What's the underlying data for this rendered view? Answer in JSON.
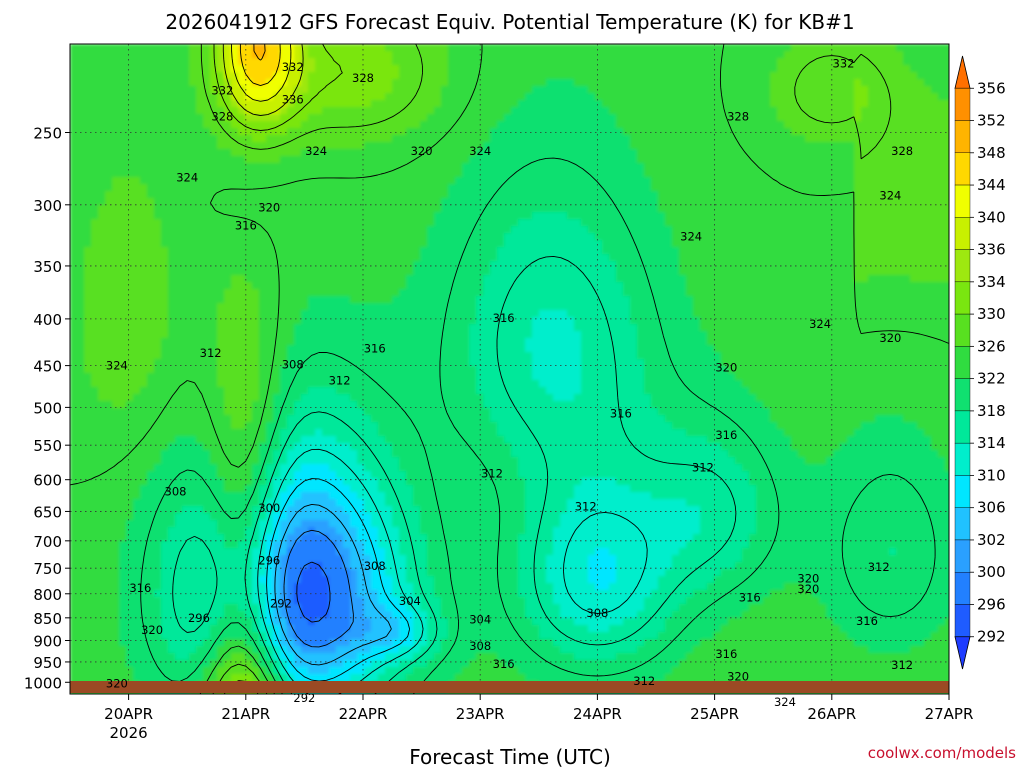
{
  "chart_data": {
    "type": "heatmap",
    "title": "2026041912 GFS Forecast Equiv. Potential Temperature (K) for KB#1",
    "xlabel": "Forecast Time (UTC)",
    "ylabel": "",
    "x_ticks": [
      {
        "label": "20APR",
        "sublabel": "2026",
        "day": 20
      },
      {
        "label": "21APR",
        "day": 21
      },
      {
        "label": "22APR",
        "day": 22
      },
      {
        "label": "23APR",
        "day": 23
      },
      {
        "label": "24APR",
        "day": 24
      },
      {
        "label": "25APR",
        "day": 25
      },
      {
        "label": "26APR",
        "day": 26
      },
      {
        "label": "27APR",
        "day": 27
      }
    ],
    "xlim": [
      19.5,
      27.0
    ],
    "y_ticks": [
      250,
      300,
      350,
      400,
      450,
      500,
      550,
      600,
      650,
      700,
      750,
      800,
      850,
      900,
      950,
      1000
    ],
    "ylim": [
      1030,
      200
    ],
    "y_axis_scale": "log pressure (hPa)",
    "grid": "dotted",
    "colorbar": {
      "units": "K",
      "ticks": [
        292,
        296,
        300,
        302,
        306,
        310,
        314,
        318,
        322,
        326,
        330,
        334,
        336,
        340,
        344,
        348,
        352,
        356
      ],
      "colors": [
        "#1e3cff",
        "#1f5cff",
        "#2280ff",
        "#2aa0ff",
        "#20c2ff",
        "#00e6ff",
        "#00eecc",
        "#00e89a",
        "#10e070",
        "#30dc40",
        "#58e020",
        "#7ae610",
        "#9ee810",
        "#c8f000",
        "#f0ff00",
        "#ffd800",
        "#ffb400",
        "#ff9000",
        "#ff7000"
      ]
    },
    "contour_labels": [
      {
        "value": "332",
        "day": 21.4,
        "p": 212
      },
      {
        "value": "328",
        "day": 22.0,
        "p": 218
      },
      {
        "value": "332",
        "day": 20.8,
        "p": 225
      },
      {
        "value": "336",
        "day": 21.4,
        "p": 230
      },
      {
        "value": "328",
        "day": 20.8,
        "p": 240
      },
      {
        "value": "324",
        "day": 21.6,
        "p": 262
      },
      {
        "value": "320",
        "day": 22.5,
        "p": 262
      },
      {
        "value": "324",
        "day": 23.0,
        "p": 262
      },
      {
        "value": "328",
        "day": 25.2,
        "p": 240
      },
      {
        "value": "332",
        "day": 26.1,
        "p": 210
      },
      {
        "value": "328",
        "day": 26.6,
        "p": 262
      },
      {
        "value": "324",
        "day": 20.5,
        "p": 280
      },
      {
        "value": "320",
        "day": 21.2,
        "p": 302
      },
      {
        "value": "316",
        "day": 21.0,
        "p": 316
      },
      {
        "value": "324",
        "day": 26.5,
        "p": 293
      },
      {
        "value": "324",
        "day": 24.8,
        "p": 325
      },
      {
        "value": "316",
        "day": 23.2,
        "p": 399
      },
      {
        "value": "324",
        "day": 25.9,
        "p": 405
      },
      {
        "value": "320",
        "day": 26.5,
        "p": 420
      },
      {
        "value": "316",
        "day": 22.1,
        "p": 431
      },
      {
        "value": "312",
        "day": 20.7,
        "p": 436
      },
      {
        "value": "308",
        "day": 21.4,
        "p": 449
      },
      {
        "value": "312",
        "day": 21.8,
        "p": 467
      },
      {
        "value": "320",
        "day": 25.1,
        "p": 452
      },
      {
        "value": "324",
        "day": 19.9,
        "p": 450
      },
      {
        "value": "316",
        "day": 24.2,
        "p": 508
      },
      {
        "value": "316",
        "day": 25.1,
        "p": 536
      },
      {
        "value": "312",
        "day": 23.1,
        "p": 591
      },
      {
        "value": "312",
        "day": 24.9,
        "p": 582
      },
      {
        "value": "308",
        "day": 20.4,
        "p": 618
      },
      {
        "value": "300",
        "day": 21.2,
        "p": 644
      },
      {
        "value": "312",
        "day": 23.9,
        "p": 642
      },
      {
        "value": "296",
        "day": 21.2,
        "p": 736
      },
      {
        "value": "308",
        "day": 22.1,
        "p": 746
      },
      {
        "value": "312",
        "day": 26.4,
        "p": 748
      },
      {
        "value": "320",
        "day": 25.8,
        "p": 770
      },
      {
        "value": "316",
        "day": 20.1,
        "p": 788
      },
      {
        "value": "304",
        "day": 22.4,
        "p": 815
      },
      {
        "value": "320",
        "day": 25.8,
        "p": 790
      },
      {
        "value": "316",
        "day": 25.3,
        "p": 808
      },
      {
        "value": "292",
        "day": 21.3,
        "p": 820
      },
      {
        "value": "308",
        "day": 24.0,
        "p": 840
      },
      {
        "value": "296",
        "day": 20.6,
        "p": 850
      },
      {
        "value": "304",
        "day": 23.0,
        "p": 854
      },
      {
        "value": "316",
        "day": 26.3,
        "p": 857
      },
      {
        "value": "320",
        "day": 20.2,
        "p": 877
      },
      {
        "value": "308",
        "day": 23.0,
        "p": 913
      },
      {
        "value": "316",
        "day": 25.1,
        "p": 931
      },
      {
        "value": "316",
        "day": 23.2,
        "p": 955
      },
      {
        "value": "312",
        "day": 26.6,
        "p": 957
      },
      {
        "value": "312",
        "day": 24.4,
        "p": 997
      },
      {
        "value": "320",
        "day": 25.2,
        "p": 985
      },
      {
        "value": "320",
        "day": 19.9,
        "p": 1003
      },
      {
        "value": "292",
        "day": 21.5,
        "p": 1041
      },
      {
        "value": "324",
        "day": 25.6,
        "p": 1051
      }
    ]
  },
  "credit": "coolwx.com/models"
}
